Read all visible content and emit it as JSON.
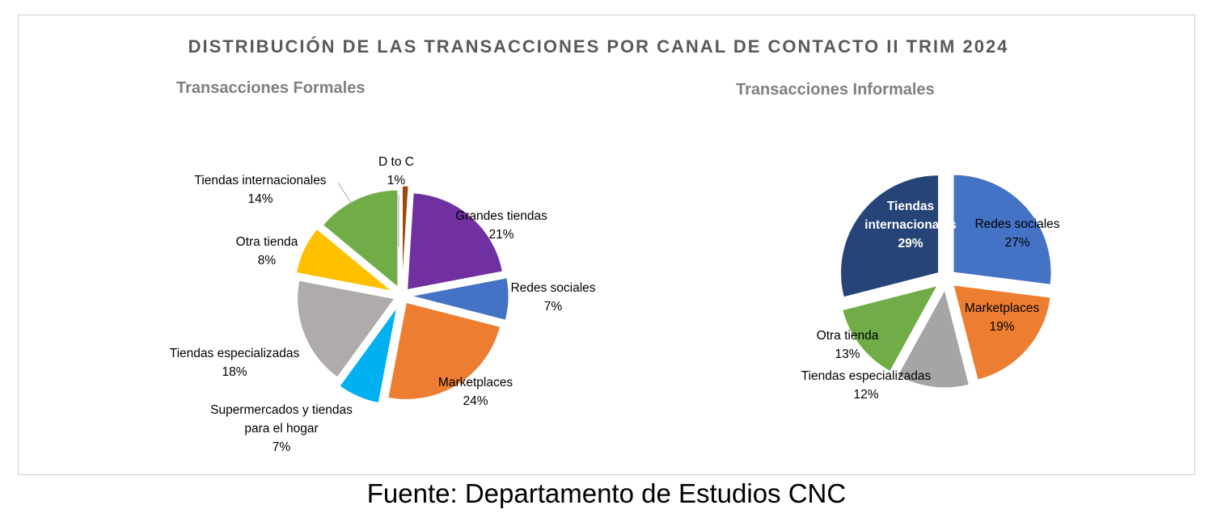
{
  "main_title": "DISTRIBUCIÓN DE LAS TRANSACCIONES  POR CANAL DE CONTACTO II TRIM 2024",
  "source": "Fuente: Departamento de Estudios CNC",
  "chart_data": [
    {
      "type": "pie",
      "title": "Transacciones Formales",
      "slices": [
        {
          "label": "D to C",
          "value": 1,
          "value_label": "1%",
          "color": "#9e480e"
        },
        {
          "label": "Grandes tiendas",
          "value": 21,
          "value_label": "21%",
          "color": "#7030a0"
        },
        {
          "label": "Redes sociales",
          "value": 7,
          "value_label": "7%",
          "color": "#4472c4"
        },
        {
          "label": "Marketplaces",
          "value": 24,
          "value_label": "24%",
          "color": "#ed7d31"
        },
        {
          "label": "Supermercados y tiendas para el hogar",
          "label_lines": [
            "Supermercados y tiendas",
            "para el hogar"
          ],
          "value": 7,
          "value_label": "7%",
          "color": "#00b0f0"
        },
        {
          "label": "Tiendas especializadas",
          "value": 18,
          "value_label": "18%",
          "color": "#afabab"
        },
        {
          "label": "Otra tienda",
          "value": 8,
          "value_label": "8%",
          "color": "#ffc000"
        },
        {
          "label": "Tiendas internacionales",
          "value": 14,
          "value_label": "14%",
          "color": "#70ad47"
        }
      ]
    },
    {
      "type": "pie",
      "title": "Transacciones Informales",
      "slices": [
        {
          "label": "Redes sociales",
          "value": 27,
          "value_label": "27%",
          "color": "#4472c4"
        },
        {
          "label": "Marketplaces",
          "value": 19,
          "value_label": "19%",
          "color": "#ed7d31"
        },
        {
          "label": "Tiendas especializadas",
          "value": 12,
          "value_label": "12%",
          "color": "#a5a5a5"
        },
        {
          "label": "Otra tienda",
          "value": 13,
          "value_label": "13%",
          "color": "#70ad47"
        },
        {
          "label": "Tiendas internacionales",
          "label_lines": [
            "Tiendas",
            "internacionales"
          ],
          "value": 29,
          "value_label": "29%",
          "color": "#264478"
        }
      ]
    }
  ]
}
